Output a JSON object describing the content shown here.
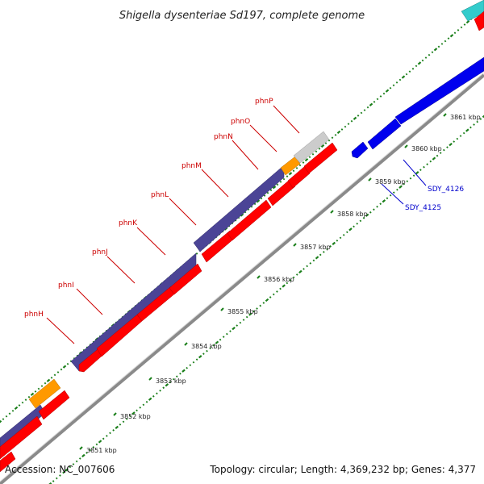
{
  "title": "Shigella dysenteriae Sd197, complete genome",
  "footer": {
    "accession": "Accession: NC_007606",
    "summary": "Topology: circular; Length: 4,369,232 bp; Genes: 4,377"
  },
  "colors": {
    "forward_gene": "#ff0000",
    "reverse_gene": "#0000ee",
    "cds_band": "#4b4496",
    "orange_feature": "#ff9900",
    "grey_feature": "#cccccc",
    "cyan_feature": "#33cccc",
    "backbone": "#888888",
    "tick_green": "#1a7f1a",
    "forward_label": "#cc0000",
    "reverse_label": "#0000cc"
  },
  "kbp_ticks": [
    "3851 kbp",
    "3852 kbp",
    "3853 kbp",
    "3854 kbp",
    "3855 kbp",
    "3856 kbp",
    "3857 kbp",
    "3858 kbp",
    "3859 kbp",
    "3860 kbp",
    "3861 kbp"
  ],
  "forward_labels": [
    "phnH",
    "phnI",
    "phnJ",
    "phnK",
    "phnL",
    "phnM",
    "phnN",
    "phnO",
    "phnP"
  ],
  "reverse_labels": [
    "SDY_4125",
    "SDY_4126"
  ]
}
